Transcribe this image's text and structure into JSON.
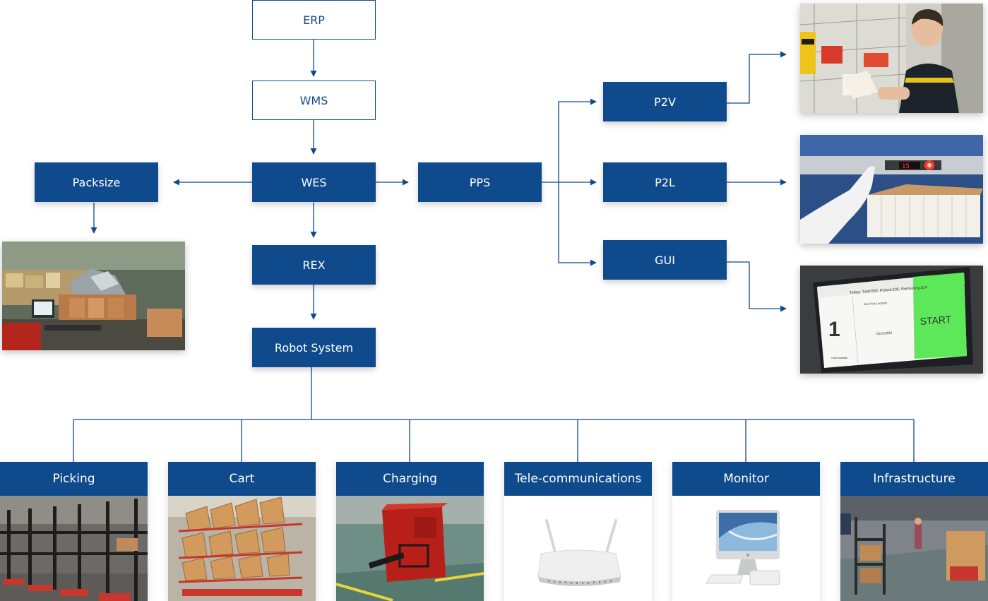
{
  "nodes": {
    "erp": "ERP",
    "wms": "WMS",
    "wes": "WES",
    "packsize": "Packsize",
    "pps": "PPS",
    "rex": "REX",
    "robot_system": "Robot System",
    "p2v": "P2V",
    "p2l": "P2L",
    "gui": "GUI"
  },
  "subsystems": [
    {
      "label": "Picking",
      "image": "picking-racks-photo"
    },
    {
      "label": "Cart",
      "image": "cart-photo"
    },
    {
      "label": "Charging",
      "image": "charging-station-photo"
    },
    {
      "label": "Tele-communications",
      "image": "router-photo"
    },
    {
      "label": "Monitor",
      "image": "imac-photo"
    },
    {
      "label": "Infrastructure",
      "image": "warehouse-photo"
    }
  ],
  "gui_screen": {
    "header": "Today: Total:550, Picked:236, Remaining:314",
    "count": "1",
    "next_label": "Next Pick Location",
    "location": "01L01932",
    "start": "START",
    "footer": "Carts Available"
  },
  "colors": {
    "box": "#0e4a8c",
    "line": "#0e4a8c",
    "start_button": "#5de85a"
  }
}
